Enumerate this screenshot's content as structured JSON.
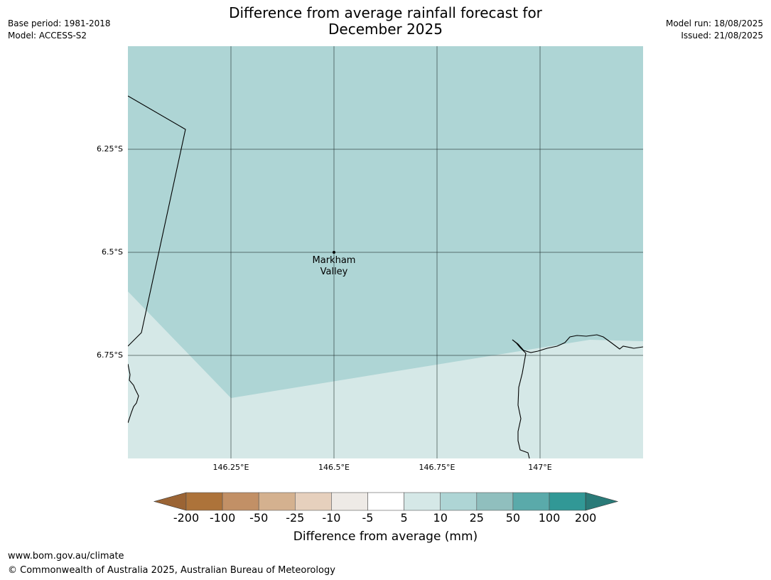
{
  "header": {
    "title_line1": "Difference from average rainfall forecast for",
    "title_line2": "December 2025",
    "base_period": "Base period: 1981-2018",
    "model": "Model: ACCESS-S2",
    "model_run": "Model run: 18/08/2025",
    "issued": "Issued: 21/08/2025"
  },
  "map": {
    "lat_labels": [
      "6.25°S",
      "6.5°S",
      "6.75°S"
    ],
    "lon_labels": [
      "146.25°E",
      "146.5°E",
      "146.75°E",
      "147°E"
    ],
    "place": {
      "line1": "Markham",
      "line2": "Valley"
    },
    "region_colors": {
      "upper": "#aed5d5",
      "lower": "#d5e8e7"
    }
  },
  "legend": {
    "title": "Difference from average (mm)",
    "tick_labels": [
      "-200",
      "-100",
      "-50",
      "-25",
      "-10",
      "-5",
      "5",
      "10",
      "25",
      "50",
      "100",
      "200"
    ],
    "colors": [
      "#9b6434",
      "#ad733a",
      "#c29066",
      "#d4b18f",
      "#e6d0bd",
      "#eeeae6",
      "#ffffff",
      "#d5e8e7",
      "#aed5d5",
      "#90bfbe",
      "#5aaaaa",
      "#319896",
      "#2a7a78"
    ]
  },
  "footer": {
    "url": "www.bom.gov.au/climate",
    "copyright": "© Commonwealth of Australia 2025, Australian Bureau of Meteorology"
  }
}
